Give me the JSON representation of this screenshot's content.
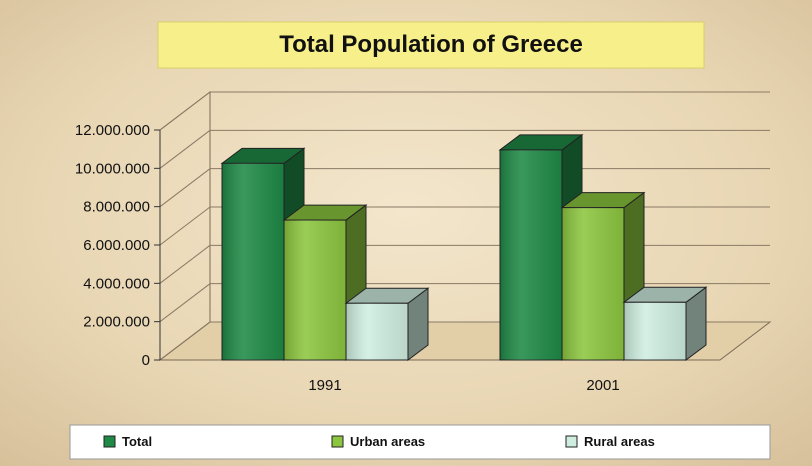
{
  "chart_data": {
    "type": "bar",
    "title": "Total Population of Greece",
    "categories": [
      "1991",
      "2001"
    ],
    "series": [
      {
        "name": "Total",
        "values": [
          10260000,
          10960000
        ],
        "color": "#1f8a46"
      },
      {
        "name": "Urban areas",
        "values": [
          7300000,
          7950000
        ],
        "color": "#8cc63f"
      },
      {
        "name": "Rural areas",
        "values": [
          2960000,
          3010000
        ],
        "color": "#cfeee0"
      }
    ],
    "yticks": [
      "0",
      "2.000.000",
      "4.000.000",
      "6.000.000",
      "8.000.000",
      "10.000.000",
      "12.000.000"
    ],
    "ylim": [
      0,
      12000000
    ],
    "grid": true,
    "legend_position": "bottom",
    "three_d": true
  }
}
